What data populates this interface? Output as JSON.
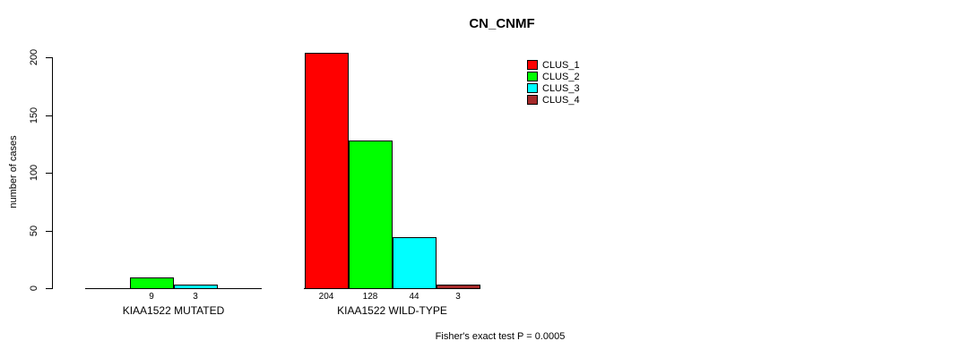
{
  "chart_data": {
    "type": "bar",
    "title": "CN_CNMF",
    "xlabel": "",
    "ylabel": "number of cases",
    "ylim": [
      0,
      200
    ],
    "yticks": [
      0,
      50,
      100,
      150,
      200
    ],
    "grid": false,
    "legend_position": "top-right",
    "categories": [
      "KIAA1522 MUTATED",
      "KIAA1522 WILD-TYPE"
    ],
    "series": [
      {
        "name": "CLUS_1",
        "color": "#ff0000",
        "values": [
          0,
          204
        ]
      },
      {
        "name": "CLUS_2",
        "color": "#00ff00",
        "values": [
          9,
          128
        ]
      },
      {
        "name": "CLUS_3",
        "color": "#00ffff",
        "values": [
          3,
          44
        ]
      },
      {
        "name": "CLUS_4",
        "color": "#a52a2a",
        "values": [
          0,
          3
        ]
      }
    ],
    "bar_value_labels_visible": [
      "9",
      "3",
      "204",
      "128",
      "44",
      "3"
    ],
    "zero_value_bars_hidden": true,
    "annotation": "Fisher's exact test P = 0.0005"
  },
  "colors": {
    "background": "#ffffff",
    "axis": "#000000",
    "text": "#000000",
    "bar_border": "#000000"
  }
}
